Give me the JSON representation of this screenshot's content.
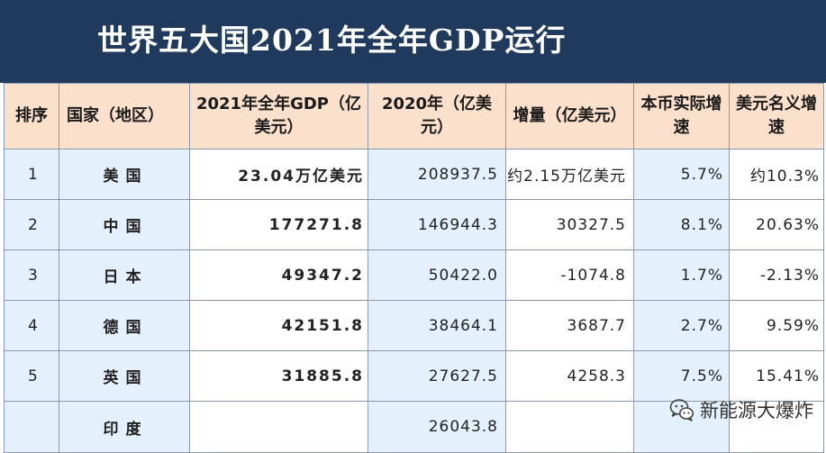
{
  "title": "世界五大国2021年全年GDP运行",
  "table": {
    "headers": [
      "排序",
      "国家（地区）",
      "2021年全年GDP（亿美元）",
      "2020年（亿美元）",
      "增量（亿美元）",
      "本币实际增速",
      "美元名义增速"
    ],
    "rows": [
      {
        "rank": "1",
        "country": "美国",
        "gdp2021": "23.04万亿美元",
        "gdp2020": "208937.5",
        "increase": "约2.15万亿美元",
        "local_growth": "5.7%",
        "usd_growth": "约10.3%"
      },
      {
        "rank": "2",
        "country": "中国",
        "gdp2021": "177271.8",
        "gdp2020": "146944.3",
        "increase": "30327.5",
        "local_growth": "8.1%",
        "usd_growth": "20.63%"
      },
      {
        "rank": "3",
        "country": "日本",
        "gdp2021": "49347.2",
        "gdp2020": "50422.0",
        "increase": "-1074.8",
        "local_growth": "1.7%",
        "usd_growth": "-2.13%"
      },
      {
        "rank": "4",
        "country": "德国",
        "gdp2021": "42151.8",
        "gdp2020": "38464.1",
        "increase": "3687.7",
        "local_growth": "2.7%",
        "usd_growth": "9.59%"
      },
      {
        "rank": "5",
        "country": "英国",
        "gdp2021": "31885.8",
        "gdp2020": "27627.5",
        "increase": "4258.3",
        "local_growth": "7.5%",
        "usd_growth": "15.41%"
      },
      {
        "rank": "",
        "country": "印度",
        "gdp2021": "",
        "gdp2020": "26043.8",
        "increase": "",
        "local_growth": "",
        "usd_growth": ""
      }
    ]
  },
  "watermark": {
    "text": "新能源大爆炸",
    "icon": "wechat-icon"
  },
  "colors": {
    "title_bg": "#1f3a5c",
    "header_bg": "#fbe0cc",
    "cell_blue": "#e4f0fb",
    "negative": "#e0303a"
  }
}
